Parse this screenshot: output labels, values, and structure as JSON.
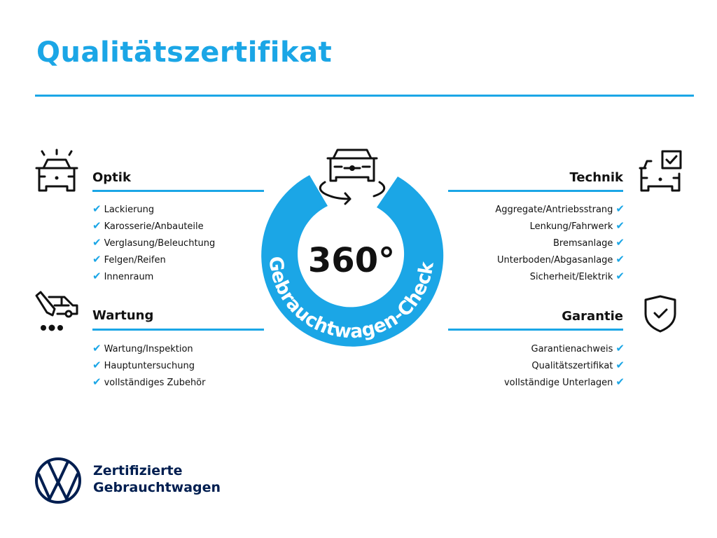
{
  "title": "Qualitätszertifikat",
  "badge": {
    "number": "360°",
    "ring_text": "Gebrauchtwagen-Check"
  },
  "sections": {
    "optik": {
      "heading": "Optik",
      "icon": "car-lights-icon",
      "items": [
        "Lackierung",
        "Karosserie/Anbauteile",
        "Verglasung/Beleuchtung",
        "Felgen/Reifen",
        "Innenraum"
      ]
    },
    "wartung": {
      "heading": "Wartung",
      "icon": "service-van-icon",
      "items": [
        "Wartung/Inspektion",
        "Hauptuntersuchung",
        "vollständiges Zubehör"
      ]
    },
    "technik": {
      "heading": "Technik",
      "icon": "car-checkbox-icon",
      "items": [
        "Aggregate/Antriebsstrang",
        "Lenkung/Fahrwerk",
        "Bremsanlage",
        "Unterboden/Abgasanlage",
        "Sicherheit/Elektrik"
      ]
    },
    "garantie": {
      "heading": "Garantie",
      "icon": "shield-check-icon",
      "items": [
        "Garantienachweis",
        "Qualitätszertifikat",
        "vollständige Unterlagen"
      ]
    }
  },
  "check_mark": "✔",
  "brand": {
    "line1": "Zertifizierte",
    "line2": "Gebrauchtwagen",
    "logo": "VW"
  },
  "colors": {
    "accent": "#1ba6e6",
    "navy": "#001e50",
    "text": "#111111"
  }
}
